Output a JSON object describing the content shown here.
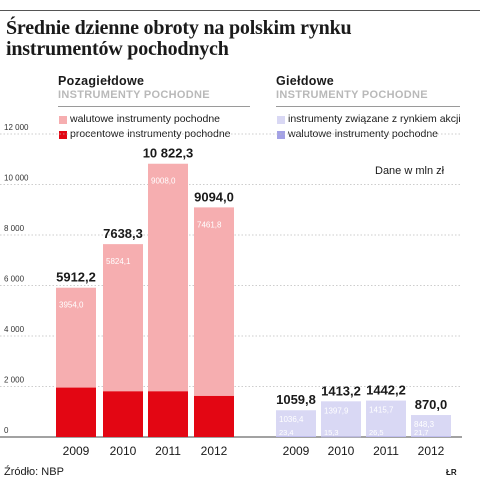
{
  "title": "Średnie dzienne obroty na polskim rynku instrumentów pochodnych",
  "source": "Źródło: NBP",
  "credit": "ŁR",
  "units": "Dane w mln zł",
  "chart_data": [
    {
      "type": "bar",
      "stacked": true,
      "group_title": "Pozagiełdowe",
      "group_subtitle": "INSTRUMENTY POCHODNE",
      "categories": [
        "2009",
        "2010",
        "2011",
        "2012"
      ],
      "series": [
        {
          "name": "procentowe instrumenty pochodne",
          "color": "#e30613",
          "values": [
            1958.2,
            1814.2,
            1814.3,
            1632.2
          ]
        },
        {
          "name": "walutowe instrumenty pochodne",
          "color": "#f6aeb0",
          "values": [
            3954.0,
            5824.1,
            9008.0,
            7461.8
          ]
        }
      ],
      "totals": [
        "5912,2",
        "7638,3",
        "10 822,3",
        "9094,0"
      ],
      "value_labels": [
        [
          "1958,2",
          "1814,2",
          "1814,3",
          "1632,2"
        ],
        [
          "3954,0",
          "5824,1",
          "9008,0",
          "7461,8"
        ]
      ],
      "yticks": [
        0,
        2000,
        4000,
        6000,
        8000,
        10000,
        12000
      ],
      "ytick_labels": [
        "0",
        "2 000",
        "4 000",
        "6 000",
        "8 000",
        "10 000",
        "12 000"
      ],
      "ylim": [
        0,
        12000
      ],
      "legend_position": "top-left"
    },
    {
      "type": "bar",
      "stacked": true,
      "group_title": "Giełdowe",
      "group_subtitle": "INSTRUMENTY POCHODNE",
      "categories": [
        "2009",
        "2010",
        "2011",
        "2012"
      ],
      "series": [
        {
          "name": "walutowe instrumenty pochodne",
          "color": "#a3a1e6",
          "values": [
            23.4,
            15.3,
            26.5,
            21.7
          ]
        },
        {
          "name": "instrumenty związane z rynkiem akcji",
          "color": "#d9d8f4",
          "values": [
            1036.4,
            1397.9,
            1415.7,
            848.3
          ]
        }
      ],
      "totals": [
        "1059,8",
        "1413,2",
        "1442,2",
        "870,0"
      ],
      "value_labels": [
        [
          "23,4",
          "15,3",
          "26,5",
          "21,7"
        ],
        [
          "1036,4",
          "1397,9",
          "1415,7",
          "848,3"
        ]
      ],
      "ylim": [
        0,
        12000
      ],
      "legend_position": "top-right"
    }
  ]
}
